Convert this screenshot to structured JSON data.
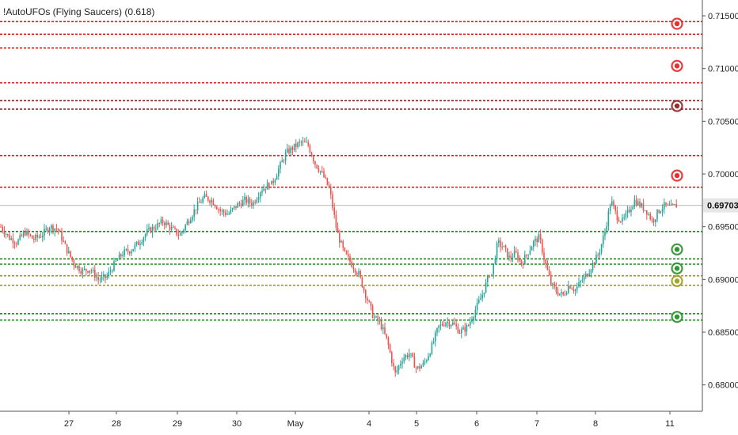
{
  "indicator": {
    "label": "!AutoUFOs (Flying Saucers) (0.618)"
  },
  "colors": {
    "up": "#26a69a",
    "down": "#ef5350",
    "red_line": "#e31b1b",
    "dark_red_line": "#8b1a1a",
    "green_line": "#1e8a1e",
    "olive_line": "#9a9a10",
    "price_tag_bg": "#e6e6e6",
    "axis_text": "#222222"
  },
  "chart_data": {
    "type": "candlestick",
    "title": "",
    "y_axis_ticks": [
      "0.71500",
      "0.71000",
      "0.70500",
      "0.70000",
      "0.69500",
      "0.69000",
      "0.68500",
      "0.68000"
    ],
    "y_tick_values": [
      0.715,
      0.71,
      0.705,
      0.7,
      0.695,
      0.69,
      0.685,
      0.68
    ],
    "x_axis_labels": [
      "27",
      "28",
      "29",
      "30",
      "May",
      "4",
      "5",
      "6",
      "7",
      "8",
      "11"
    ],
    "ylim": [
      0.6775,
      0.7165
    ],
    "current_price": {
      "label": "0.69703",
      "value": 0.69703
    },
    "levels": [
      {
        "value": 0.71445,
        "color": "red"
      },
      {
        "value": 0.71325,
        "color": "red"
      },
      {
        "value": 0.71195,
        "color": "red"
      },
      {
        "value": 0.70865,
        "color": "red"
      },
      {
        "value": 0.70695,
        "color": "dark_red"
      },
      {
        "value": 0.70615,
        "color": "dark_red"
      },
      {
        "value": 0.70175,
        "color": "red"
      },
      {
        "value": 0.69875,
        "color": "red"
      },
      {
        "value": 0.69455,
        "color": "green"
      },
      {
        "value": 0.69195,
        "color": "green"
      },
      {
        "value": 0.69145,
        "color": "green"
      },
      {
        "value": 0.69035,
        "color": "olive"
      },
      {
        "value": 0.68945,
        "color": "olive"
      },
      {
        "value": 0.68675,
        "color": "green"
      },
      {
        "value": 0.68615,
        "color": "green"
      }
    ],
    "markers": [
      {
        "value": 0.71425,
        "color": "red"
      },
      {
        "value": 0.71025,
        "color": "red"
      },
      {
        "value": 0.70645,
        "color": "dark_red"
      },
      {
        "value": 0.69985,
        "color": "red"
      },
      {
        "value": 0.69285,
        "color": "green"
      },
      {
        "value": 0.69105,
        "color": "green"
      },
      {
        "value": 0.68985,
        "color": "olive"
      },
      {
        "value": 0.68645,
        "color": "green"
      }
    ],
    "price_path": [
      [
        0.695,
        0.694,
        0.6935,
        0.6945,
        0.6938,
        0.6942,
        0.695,
        0.6948,
        0.693,
        0.6915,
        0.6908,
        0.691,
        0.69,
        0.6902,
        0.6915,
        0.6925,
        0.6928,
        0.6935,
        0.6945,
        0.695,
        0.6955,
        0.6948,
        0.6942,
        0.6955,
        0.6968,
        0.6978,
        0.6975,
        0.6965,
        0.6962,
        0.697,
        0.6975,
        0.6972,
        0.6985,
        0.699
      ],
      [
        0.699,
        0.7005,
        0.702,
        0.7025,
        0.703,
        0.7028,
        0.701,
        0.7,
        0.6985,
        0.6945,
        0.6925,
        0.6915,
        0.6905,
        0.6885,
        0.6865,
        0.6858,
        0.684,
        0.681,
        0.6825,
        0.683,
        0.6815,
        0.682,
        0.6835,
        0.6855,
        0.686,
        0.6858,
        0.685,
        0.6855,
        0.687,
        0.6885,
        0.6905
      ],
      [
        0.6905,
        0.6935,
        0.693,
        0.692,
        0.6925,
        0.6915,
        0.6925,
        0.6935,
        0.694,
        0.6915,
        0.6895,
        0.6888,
        0.6885,
        0.6895,
        0.689,
        0.6898,
        0.6905,
        0.6915,
        0.6925,
        0.6945,
        0.6975,
        0.696,
        0.6955,
        0.6965,
        0.6975,
        0.697,
        0.6965,
        0.6955,
        0.6965,
        0.697,
        0.6968,
        0.697
      ]
    ]
  }
}
